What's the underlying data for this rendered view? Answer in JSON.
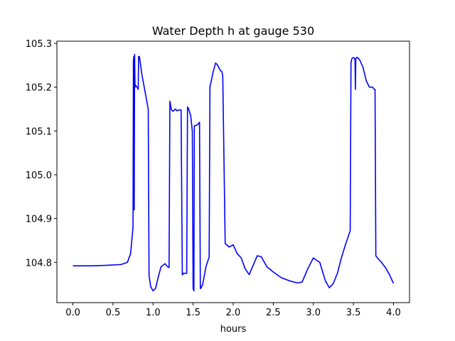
{
  "chart_data": {
    "type": "line",
    "title": "Water Depth h at gauge 530",
    "xlabel": "hours",
    "ylabel": "",
    "xlim": [
      -0.2,
      4.2
    ],
    "ylim": [
      104.708,
      105.305
    ],
    "xticks": [
      0.0,
      0.5,
      1.0,
      1.5,
      2.0,
      2.5,
      3.0,
      3.5,
      4.0
    ],
    "xtick_labels": [
      "0.0",
      "0.5",
      "1.0",
      "1.5",
      "2.0",
      "2.5",
      "3.0",
      "3.5",
      "4.0"
    ],
    "yticks": [
      104.8,
      104.9,
      105.0,
      105.1,
      105.2,
      105.3
    ],
    "ytick_labels": [
      "104.8",
      "104.9",
      "105.0",
      "105.1",
      "105.2",
      "105.3"
    ],
    "grid": false,
    "series": [
      {
        "color": "#0000ff",
        "x": [
          0.0,
          0.2,
          0.4,
          0.6,
          0.68,
          0.72,
          0.75,
          0.755,
          0.76,
          0.765,
          0.77,
          0.775,
          0.78,
          0.8,
          0.815,
          0.82,
          0.83,
          0.86,
          0.9,
          0.94,
          0.95,
          0.97,
          1.0,
          1.03,
          1.07,
          1.1,
          1.15,
          1.18,
          1.2,
          1.21,
          1.22,
          1.23,
          1.25,
          1.28,
          1.3,
          1.32,
          1.35,
          1.365,
          1.37,
          1.38,
          1.42,
          1.43,
          1.44,
          1.47,
          1.49,
          1.5,
          1.51,
          1.515,
          1.52,
          1.53,
          1.56,
          1.58,
          1.59,
          1.6,
          1.62,
          1.66,
          1.7,
          1.71,
          1.75,
          1.78,
          1.8,
          1.84,
          1.86,
          1.87,
          1.9,
          1.95,
          2.0,
          2.05,
          2.1,
          2.15,
          2.2,
          2.23,
          2.3,
          2.35,
          2.42,
          2.5,
          2.6,
          2.7,
          2.8,
          2.86,
          2.93,
          3.0,
          3.08,
          3.15,
          3.2,
          3.25,
          3.3,
          3.35,
          3.4,
          3.46,
          3.47,
          3.48,
          3.5,
          3.52,
          3.525,
          3.53,
          3.54,
          3.55,
          3.58,
          3.62,
          3.66,
          3.7,
          3.74,
          3.76,
          3.77,
          3.78,
          3.8,
          3.85,
          3.9,
          3.95,
          4.0
        ],
        "y": [
          104.792,
          104.792,
          104.793,
          104.795,
          104.8,
          104.82,
          104.88,
          105.26,
          105.27,
          104.92,
          105.275,
          105.2,
          105.205,
          105.2,
          105.195,
          105.27,
          105.27,
          105.23,
          105.19,
          105.15,
          104.77,
          104.745,
          104.735,
          104.74,
          104.77,
          104.79,
          104.797,
          104.79,
          104.788,
          105.168,
          105.158,
          105.148,
          105.145,
          105.15,
          105.146,
          105.148,
          105.148,
          104.772,
          104.772,
          104.775,
          104.775,
          105.155,
          105.152,
          105.135,
          105.1,
          104.74,
          104.735,
          105.112,
          105.112,
          105.112,
          105.115,
          105.12,
          104.74,
          104.742,
          104.75,
          104.79,
          104.812,
          105.2,
          105.235,
          105.255,
          105.252,
          105.238,
          105.235,
          105.225,
          104.843,
          104.835,
          104.84,
          104.82,
          104.81,
          104.785,
          104.772,
          104.785,
          104.815,
          104.813,
          104.79,
          104.778,
          104.765,
          104.758,
          104.753,
          104.755,
          104.785,
          104.81,
          104.8,
          104.758,
          104.742,
          104.752,
          104.775,
          104.81,
          104.84,
          104.872,
          105.255,
          105.265,
          105.268,
          105.265,
          105.195,
          105.265,
          105.268,
          105.268,
          105.262,
          105.245,
          105.215,
          105.2,
          105.2,
          105.195,
          105.195,
          104.815,
          104.81,
          104.8,
          104.788,
          104.772,
          104.752
        ]
      }
    ]
  }
}
